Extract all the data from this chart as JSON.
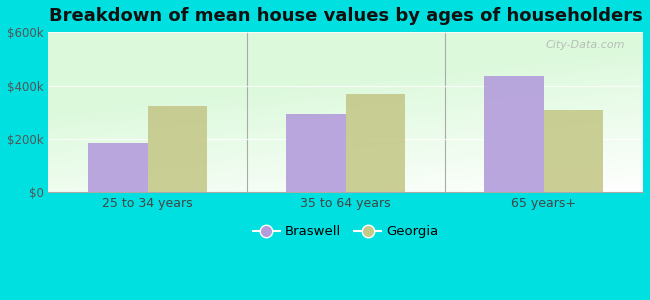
{
  "title": "Breakdown of mean house values by ages of householders",
  "categories": [
    "25 to 34 years",
    "35 to 64 years",
    "65 years+"
  ],
  "braswell": [
    185000,
    295000,
    435000
  ],
  "georgia": [
    325000,
    370000,
    310000
  ],
  "bar_color_braswell": "#b39ddb",
  "bar_color_georgia": "#c5c98a",
  "background_outer": "#00e0e0",
  "ylim": [
    0,
    600000
  ],
  "yticks": [
    0,
    200000,
    400000,
    600000
  ],
  "ytick_labels": [
    "$0",
    "$200k",
    "$400k",
    "$600k"
  ],
  "legend_braswell": "Braswell",
  "legend_georgia": "Georgia",
  "title_fontsize": 13,
  "bar_width": 0.3,
  "watermark": "City-Data.com"
}
